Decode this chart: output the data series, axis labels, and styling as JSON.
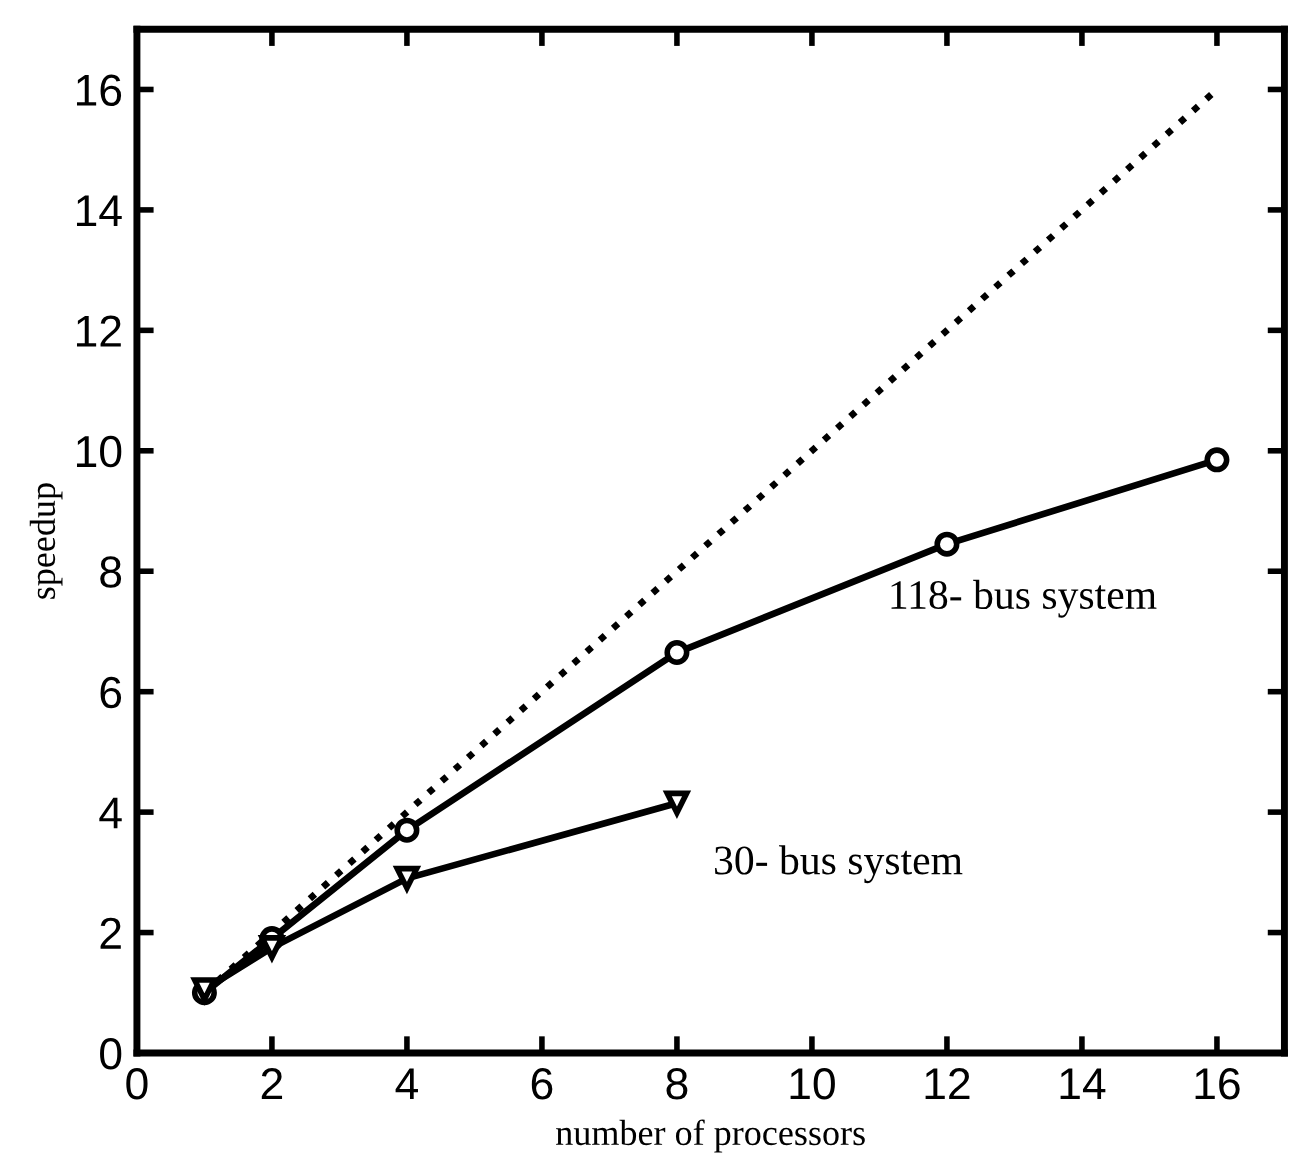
{
  "chart_data": {
    "type": "line",
    "xlabel": "number of processors",
    "ylabel": "speedup",
    "xlim": [
      0,
      17
    ],
    "ylim": [
      0,
      17
    ],
    "xticks": [
      0,
      2,
      4,
      6,
      8,
      10,
      12,
      14,
      16
    ],
    "yticks": [
      0,
      2,
      4,
      6,
      8,
      10,
      12,
      14,
      16
    ],
    "grid": false,
    "legend": false,
    "series": [
      {
        "color": "#000000",
        "x": [
          1,
          16
        ],
        "values": [
          1,
          16
        ],
        "line_style": "dotted"
      },
      {
        "name": "118- bus system",
        "color": "#000000",
        "x": [
          1,
          2,
          4,
          8,
          12,
          16
        ],
        "values": [
          1,
          1.9,
          3.7,
          6.65,
          8.45,
          9.85
        ],
        "line_style": "solid",
        "marker": "circle"
      },
      {
        "name": "30- bus system",
        "color": "#000000",
        "x": [
          1,
          2,
          4,
          8
        ],
        "values": [
          1.05,
          1.75,
          2.9,
          4.15
        ],
        "line_style": "solid",
        "marker": "triangle"
      }
    ]
  }
}
